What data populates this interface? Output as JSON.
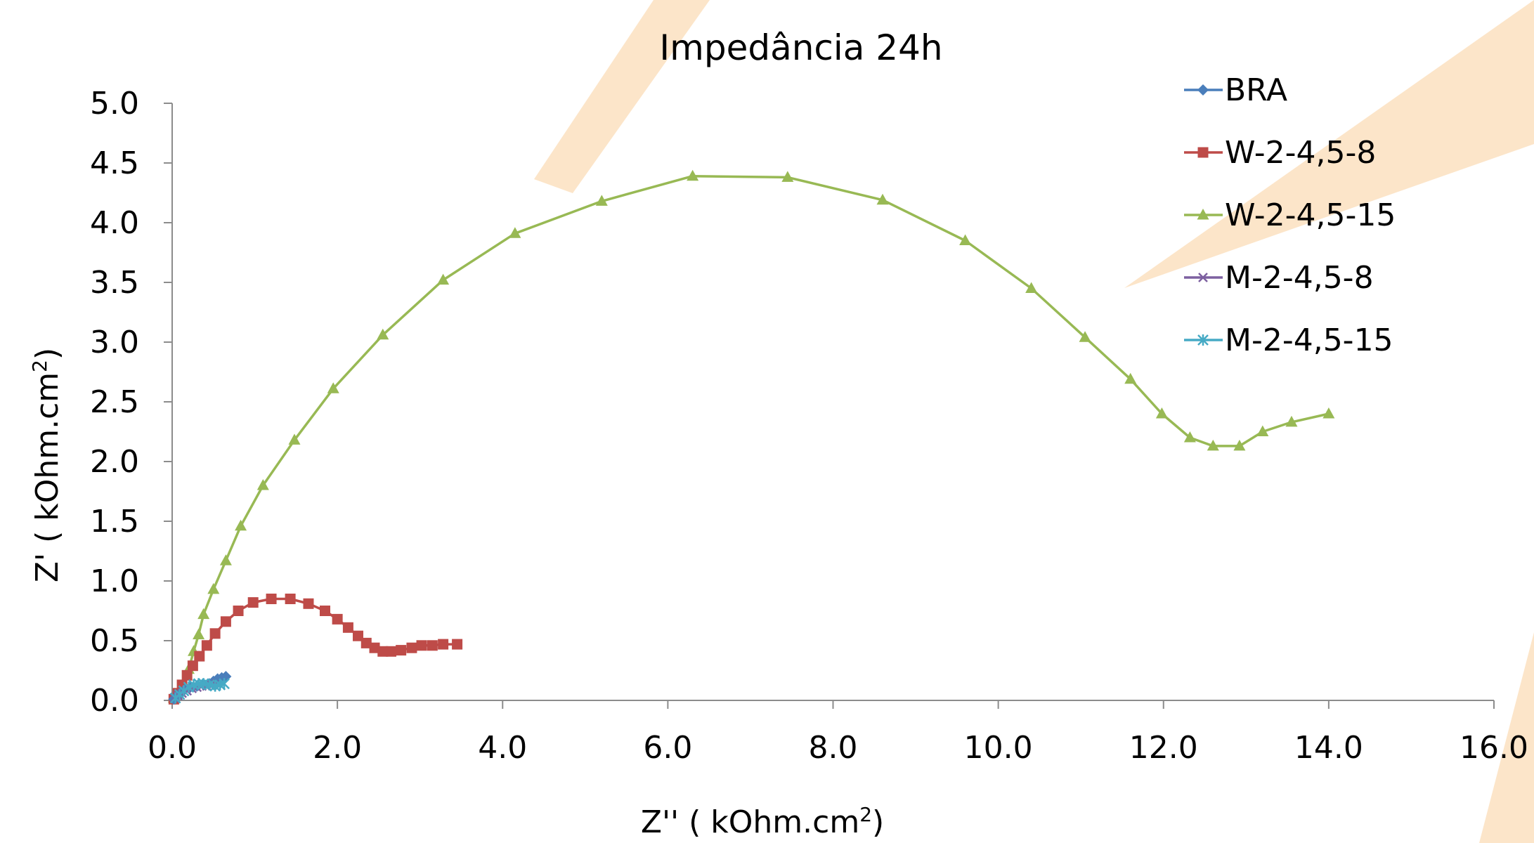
{
  "chart_data": {
    "type": "scatter",
    "title": "Impedância 24h",
    "xlabel": "Z'' ( kOhm.cm",
    "ylabel": "Z' ( kOhm.cm",
    "unit_superscript": "2",
    "xlim": [
      0,
      16
    ],
    "ylim": [
      0,
      5
    ],
    "x_ticks": [
      "0.0",
      "2.0",
      "4.0",
      "6.0",
      "8.0",
      "10.0",
      "12.0",
      "14.0",
      "16.0"
    ],
    "y_ticks": [
      "0.0",
      "0.5",
      "1.0",
      "1.5",
      "2.0",
      "2.5",
      "3.0",
      "3.5",
      "4.0",
      "4.5",
      "5.0"
    ],
    "grid": false,
    "legend_position": "top-right",
    "series": [
      {
        "name": "BRA",
        "color": "#4a7ebb",
        "marker": "diamond",
        "points": [
          [
            0.02,
            0.01
          ],
          [
            0.05,
            0.03
          ],
          [
            0.1,
            0.06
          ],
          [
            0.15,
            0.09
          ],
          [
            0.22,
            0.11
          ],
          [
            0.3,
            0.12
          ],
          [
            0.38,
            0.13
          ],
          [
            0.45,
            0.14
          ],
          [
            0.5,
            0.16
          ],
          [
            0.55,
            0.18
          ],
          [
            0.6,
            0.19
          ],
          [
            0.65,
            0.2
          ]
        ]
      },
      {
        "name": "W-2-4,5-8",
        "color": "#be4b48",
        "marker": "square",
        "points": [
          [
            0.02,
            0.01
          ],
          [
            0.07,
            0.06
          ],
          [
            0.12,
            0.13
          ],
          [
            0.18,
            0.21
          ],
          [
            0.25,
            0.29
          ],
          [
            0.33,
            0.37
          ],
          [
            0.42,
            0.46
          ],
          [
            0.52,
            0.56
          ],
          [
            0.65,
            0.66
          ],
          [
            0.8,
            0.75
          ],
          [
            0.98,
            0.82
          ],
          [
            1.2,
            0.85
          ],
          [
            1.43,
            0.85
          ],
          [
            1.65,
            0.81
          ],
          [
            1.85,
            0.75
          ],
          [
            2.0,
            0.68
          ],
          [
            2.13,
            0.61
          ],
          [
            2.25,
            0.54
          ],
          [
            2.35,
            0.48
          ],
          [
            2.45,
            0.44
          ],
          [
            2.55,
            0.41
          ],
          [
            2.65,
            0.41
          ],
          [
            2.77,
            0.42
          ],
          [
            2.9,
            0.44
          ],
          [
            3.02,
            0.46
          ],
          [
            3.15,
            0.46
          ],
          [
            3.28,
            0.47
          ],
          [
            3.45,
            0.47
          ]
        ]
      },
      {
        "name": "W-2-4,5-15",
        "color": "#98b954",
        "marker": "triangle",
        "points": [
          [
            0.02,
            0.02
          ],
          [
            0.08,
            0.07
          ],
          [
            0.14,
            0.14
          ],
          [
            0.2,
            0.26
          ],
          [
            0.26,
            0.41
          ],
          [
            0.32,
            0.55
          ],
          [
            0.38,
            0.72
          ],
          [
            0.5,
            0.93
          ],
          [
            0.65,
            1.17
          ],
          [
            0.83,
            1.46
          ],
          [
            1.1,
            1.8
          ],
          [
            1.48,
            2.18
          ],
          [
            1.95,
            2.61
          ],
          [
            2.55,
            3.06
          ],
          [
            3.28,
            3.52
          ],
          [
            4.15,
            3.91
          ],
          [
            5.2,
            4.18
          ],
          [
            6.3,
            4.39
          ],
          [
            7.45,
            4.38
          ],
          [
            8.6,
            4.19
          ],
          [
            9.6,
            3.85
          ],
          [
            10.4,
            3.45
          ],
          [
            11.05,
            3.04
          ],
          [
            11.6,
            2.69
          ],
          [
            11.98,
            2.4
          ],
          [
            12.32,
            2.2
          ],
          [
            12.6,
            2.13
          ],
          [
            12.92,
            2.13
          ],
          [
            13.2,
            2.25
          ],
          [
            13.55,
            2.33
          ],
          [
            14.0,
            2.4
          ]
        ]
      },
      {
        "name": "M-2-4,5-8",
        "color": "#7d60a0",
        "marker": "x",
        "points": [
          [
            0.03,
            0.02
          ],
          [
            0.07,
            0.04
          ],
          [
            0.12,
            0.06
          ],
          [
            0.18,
            0.08
          ],
          [
            0.24,
            0.1
          ],
          [
            0.3,
            0.11
          ],
          [
            0.36,
            0.12
          ],
          [
            0.42,
            0.12
          ],
          [
            0.48,
            0.13
          ],
          [
            0.54,
            0.14
          ]
        ]
      },
      {
        "name": "M-2-4,5-15",
        "color": "#46aac5",
        "marker": "star",
        "points": [
          [
            0.04,
            0.02
          ],
          [
            0.09,
            0.05
          ],
          [
            0.14,
            0.08
          ],
          [
            0.2,
            0.11
          ],
          [
            0.26,
            0.13
          ],
          [
            0.32,
            0.14
          ],
          [
            0.38,
            0.14
          ],
          [
            0.45,
            0.13
          ],
          [
            0.52,
            0.12
          ],
          [
            0.58,
            0.13
          ],
          [
            0.63,
            0.14
          ]
        ]
      }
    ]
  }
}
